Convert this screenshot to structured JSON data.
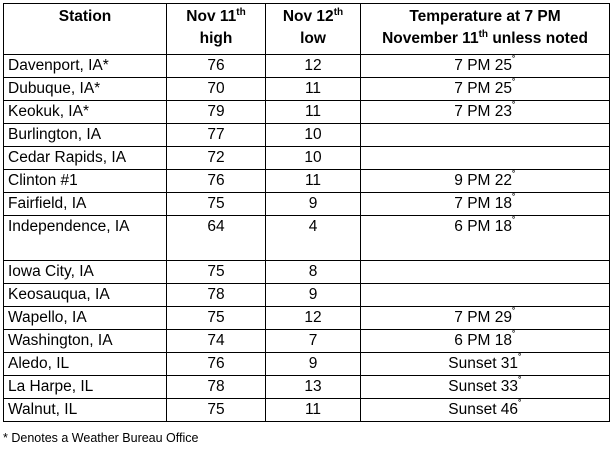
{
  "headers": {
    "station": "Station",
    "high_prefix": "Nov 11",
    "high_sup": "th",
    "high_suffix": "high",
    "low_prefix": "Nov 12",
    "low_sup": "th",
    "low_suffix": "low",
    "temp_line1": "Temperature at 7 PM",
    "temp_line2_prefix": "November 11",
    "temp_line2_sup": "th",
    "temp_line2_suffix": " unless noted"
  },
  "rows": [
    {
      "station": "Davenport, IA*",
      "high": "76",
      "low": "12",
      "temp": "7 PM 25",
      "deg": "˚"
    },
    {
      "station": "Dubuque, IA*",
      "high": "70",
      "low": "11",
      "temp": "7 PM 25",
      "deg": "˚"
    },
    {
      "station": "Keokuk, IA*",
      "high": "79",
      "low": "11",
      "temp": "7 PM 23",
      "deg": "˚"
    },
    {
      "station": "Burlington, IA",
      "high": "77",
      "low": "10",
      "temp": "",
      "deg": ""
    },
    {
      "station": "Cedar Rapids, IA",
      "high": "72",
      "low": "10",
      "temp": "",
      "deg": ""
    },
    {
      "station": "Clinton #1",
      "high": "76",
      "low": "11",
      "temp": "9 PM 22",
      "deg": "˚"
    },
    {
      "station": "Fairfield, IA",
      "high": "75",
      "low": "9",
      "temp": "7 PM 18",
      "deg": "˚"
    },
    {
      "station": "Independence, IA",
      "high": "64",
      "low": "4",
      "temp": "6 PM 18",
      "deg": "˚"
    },
    {
      "station": "Iowa City, IA",
      "high": "75",
      "low": "8",
      "temp": "",
      "deg": ""
    },
    {
      "station": "Keosauqua, IA",
      "high": "78",
      "low": "9",
      "temp": "",
      "deg": ""
    },
    {
      "station": "Wapello, IA",
      "high": "75",
      "low": "12",
      "temp": "7 PM 29",
      "deg": "˚"
    },
    {
      "station": "Washington, IA",
      "high": "74",
      "low": "7",
      "temp": "6 PM 18",
      "deg": "˚"
    },
    {
      "station": "Aledo, IL",
      "high": "76",
      "low": "9",
      "temp": "Sunset 31",
      "deg": "˚"
    },
    {
      "station": "La Harpe, IL",
      "high": "78",
      "low": "13",
      "temp": "Sunset 33",
      "deg": "˚"
    },
    {
      "station": "Walnut, IL",
      "high": "75",
      "low": "11",
      "temp": "Sunset 46",
      "deg": "˚"
    }
  ],
  "footnote": "* Denotes a Weather Bureau Office"
}
